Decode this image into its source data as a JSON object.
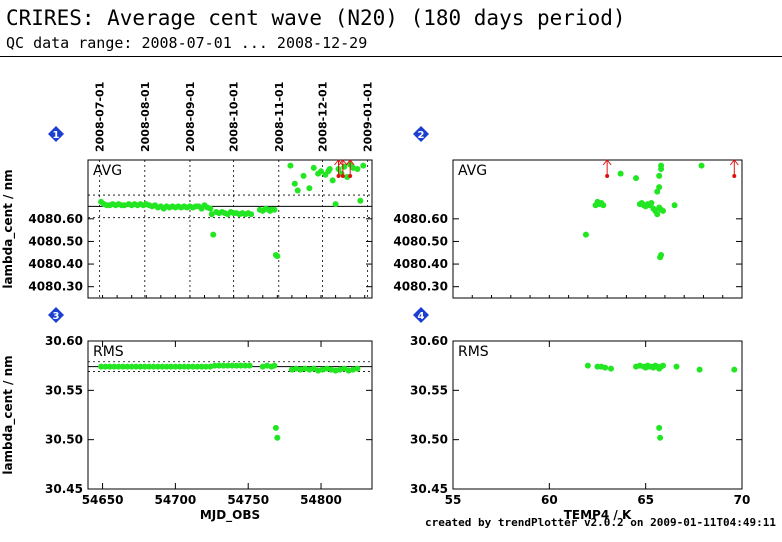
{
  "page": {
    "title": "CRIRES: Average cent wave (N20) (180 days period)",
    "subtitle": "QC data range: 2008-07-01 ... 2008-12-29",
    "footer": "created by trendPlotter v2.0.2 on 2009-01-11T04:49:11"
  },
  "chart_data": [
    {
      "panel_number": "1",
      "type": "scatter",
      "label": "AVG",
      "ylabel": "lambda_cent / nm",
      "xlim": [
        54640,
        54835
      ],
      "ylim": [
        4080.25,
        4080.86
      ],
      "yticks": [
        "4080.30",
        "4080.40",
        "4080.50",
        "4080.60"
      ],
      "ytick_values": [
        4080.3,
        4080.4,
        4080.5,
        4080.6
      ],
      "xticks": [],
      "x_date_labels": [
        "2008-07-01",
        "2008-08-01",
        "2008-09-01",
        "2008-10-01",
        "2008-11-01",
        "2008-12-01",
        "2009-01-01"
      ],
      "x_date_positions": [
        54648,
        54679,
        54710,
        54740,
        54771,
        54801,
        54832
      ],
      "ref_lines": [
        4080.655
      ],
      "limit_lines": [
        4080.605,
        4080.705
      ],
      "points": [
        [
          54649,
          4080.675
        ],
        [
          54651,
          4080.665
        ],
        [
          54653,
          4080.66
        ],
        [
          54655,
          4080.66
        ],
        [
          54657,
          4080.665
        ],
        [
          54659,
          4080.66
        ],
        [
          54661,
          4080.665
        ],
        [
          54663,
          4080.66
        ],
        [
          54665,
          4080.66
        ],
        [
          54668,
          4080.665
        ],
        [
          54670,
          4080.66
        ],
        [
          54672,
          4080.665
        ],
        [
          54674,
          4080.66
        ],
        [
          54676,
          4080.665
        ],
        [
          54678,
          4080.66
        ],
        [
          54680,
          4080.665
        ],
        [
          54682,
          4080.66
        ],
        [
          54684,
          4080.655
        ],
        [
          54686,
          4080.66
        ],
        [
          54688,
          4080.65
        ],
        [
          54690,
          4080.655
        ],
        [
          54692,
          4080.645
        ],
        [
          54694,
          4080.655
        ],
        [
          54696,
          4080.65
        ],
        [
          54698,
          4080.655
        ],
        [
          54700,
          4080.65
        ],
        [
          54702,
          4080.655
        ],
        [
          54704,
          4080.65
        ],
        [
          54706,
          4080.655
        ],
        [
          54708,
          4080.65
        ],
        [
          54710,
          4080.655
        ],
        [
          54712,
          4080.65
        ],
        [
          54714,
          4080.655
        ],
        [
          54716,
          4080.655
        ],
        [
          54718,
          4080.645
        ],
        [
          54720,
          4080.66
        ],
        [
          54722,
          4080.65
        ],
        [
          54724,
          4080.645
        ],
        [
          54725,
          4080.62
        ],
        [
          54726,
          4080.53
        ],
        [
          54728,
          4080.63
        ],
        [
          54730,
          4080.625
        ],
        [
          54732,
          4080.63
        ],
        [
          54734,
          4080.625
        ],
        [
          54736,
          4080.62
        ],
        [
          54738,
          4080.63
        ],
        [
          54740,
          4080.625
        ],
        [
          54742,
          4080.625
        ],
        [
          54744,
          4080.62
        ],
        [
          54746,
          4080.625
        ],
        [
          54748,
          4080.62
        ],
        [
          54750,
          4080.625
        ],
        [
          54752,
          4080.62
        ],
        [
          54758,
          4080.64
        ],
        [
          54760,
          4080.635
        ],
        [
          54762,
          4080.645
        ],
        [
          54764,
          4080.64
        ],
        [
          54765,
          4080.635
        ],
        [
          54766,
          4080.64
        ],
        [
          54768,
          4080.64
        ],
        [
          54769,
          4080.44
        ],
        [
          54770,
          4080.435
        ],
        [
          54779,
          4080.835
        ],
        [
          54782,
          4080.755
        ],
        [
          54784,
          4080.725
        ],
        [
          54788,
          4080.79
        ],
        [
          54792,
          4080.735
        ],
        [
          54795,
          4080.825
        ],
        [
          54798,
          4080.8
        ],
        [
          54800,
          4080.81
        ],
        [
          54803,
          4080.795
        ],
        [
          54805,
          4080.81
        ],
        [
          54806,
          4080.82
        ],
        [
          54808,
          4080.77
        ],
        [
          54810,
          4080.665
        ],
        [
          54812,
          4080.82
        ],
        [
          54814,
          4080.8
        ],
        [
          54816,
          4080.83
        ],
        [
          54818,
          4080.785
        ],
        [
          54820,
          4080.84
        ],
        [
          54822,
          4080.825
        ],
        [
          54825,
          4080.82
        ],
        [
          54827,
          4080.68
        ],
        [
          54829,
          4080.835
        ]
      ],
      "offscale_up": [
        54812,
        54815,
        54820
      ]
    },
    {
      "panel_number": "2",
      "type": "scatter",
      "label": "AVG",
      "ylabel": "",
      "xlim": [
        55,
        70
      ],
      "ylim": [
        4080.25,
        4080.86
      ],
      "yticks": [
        "4080.30",
        "4080.40",
        "4080.50",
        "4080.60"
      ],
      "ytick_values": [
        4080.3,
        4080.4,
        4080.5,
        4080.6
      ],
      "xticks": [],
      "ref_lines": [],
      "limit_lines": [],
      "points": [
        [
          61.9,
          4080.53
        ],
        [
          62.4,
          4080.66
        ],
        [
          62.5,
          4080.675
        ],
        [
          62.6,
          4080.665
        ],
        [
          62.7,
          4080.67
        ],
        [
          62.8,
          4080.66
        ],
        [
          63.7,
          4080.8
        ],
        [
          64.5,
          4080.78
        ],
        [
          64.7,
          4080.665
        ],
        [
          64.8,
          4080.67
        ],
        [
          64.9,
          4080.66
        ],
        [
          65.0,
          4080.655
        ],
        [
          65.1,
          4080.665
        ],
        [
          65.2,
          4080.66
        ],
        [
          65.3,
          4080.67
        ],
        [
          65.4,
          4080.645
        ],
        [
          65.5,
          4080.635
        ],
        [
          65.6,
          4080.62
        ],
        [
          65.7,
          4080.65
        ],
        [
          65.8,
          4080.64
        ],
        [
          65.9,
          4080.635
        ],
        [
          65.6,
          4080.72
        ],
        [
          65.7,
          4080.74
        ],
        [
          65.8,
          4080.82
        ],
        [
          65.8,
          4080.835
        ],
        [
          65.7,
          4080.79
        ],
        [
          65.8,
          4080.44
        ],
        [
          65.75,
          4080.43
        ],
        [
          66.5,
          4080.66
        ],
        [
          67.9,
          4080.835
        ]
      ],
      "offscale_up": [
        63.0,
        69.6
      ]
    },
    {
      "panel_number": "3",
      "type": "scatter",
      "label": "RMS",
      "ylabel": "lambda_cent / nm",
      "xlabel": "MJD_OBS",
      "xlim": [
        54640,
        54835
      ],
      "ylim": [
        30.45,
        30.6
      ],
      "yticks": [
        "30.45",
        "30.50",
        "30.55",
        "30.60"
      ],
      "ytick_values": [
        30.45,
        30.5,
        30.55,
        30.6
      ],
      "xticks": [
        "54650",
        "54700",
        "54750",
        "54800"
      ],
      "xtick_values": [
        54650,
        54700,
        54750,
        54800
      ],
      "ref_lines": [
        30.574
      ],
      "limit_lines": [
        30.569,
        30.579
      ],
      "points": [
        [
          54649,
          30.574
        ],
        [
          54652,
          30.574
        ],
        [
          54655,
          30.574
        ],
        [
          54658,
          30.574
        ],
        [
          54661,
          30.574
        ],
        [
          54664,
          30.574
        ],
        [
          54667,
          30.574
        ],
        [
          54670,
          30.574
        ],
        [
          54673,
          30.574
        ],
        [
          54676,
          30.574
        ],
        [
          54679,
          30.574
        ],
        [
          54682,
          30.574
        ],
        [
          54685,
          30.574
        ],
        [
          54688,
          30.574
        ],
        [
          54691,
          30.574
        ],
        [
          54694,
          30.574
        ],
        [
          54697,
          30.574
        ],
        [
          54700,
          30.574
        ],
        [
          54703,
          30.574
        ],
        [
          54706,
          30.574
        ],
        [
          54709,
          30.574
        ],
        [
          54712,
          30.574
        ],
        [
          54715,
          30.574
        ],
        [
          54718,
          30.574
        ],
        [
          54721,
          30.574
        ],
        [
          54724,
          30.574
        ],
        [
          54727,
          30.575
        ],
        [
          54730,
          30.575
        ],
        [
          54733,
          30.575
        ],
        [
          54736,
          30.575
        ],
        [
          54739,
          30.575
        ],
        [
          54742,
          30.575
        ],
        [
          54745,
          30.575
        ],
        [
          54748,
          30.575
        ],
        [
          54751,
          30.575
        ],
        [
          54760,
          30.574
        ],
        [
          54763,
          30.575
        ],
        [
          54766,
          30.574
        ],
        [
          54768,
          30.575
        ],
        [
          54769,
          30.512
        ],
        [
          54770,
          30.502
        ],
        [
          54780,
          30.571
        ],
        [
          54783,
          30.572
        ],
        [
          54786,
          30.571
        ],
        [
          54789,
          30.572
        ],
        [
          54792,
          30.571
        ],
        [
          54795,
          30.572
        ],
        [
          54798,
          30.57
        ],
        [
          54801,
          30.571
        ],
        [
          54804,
          30.572
        ],
        [
          54807,
          30.571
        ],
        [
          54810,
          30.57
        ],
        [
          54813,
          30.571
        ],
        [
          54816,
          30.572
        ],
        [
          54819,
          30.57
        ],
        [
          54822,
          30.571
        ],
        [
          54825,
          30.572
        ]
      ],
      "offscale_up": []
    },
    {
      "panel_number": "4",
      "type": "scatter",
      "label": "RMS",
      "ylabel": "",
      "xlabel": "TEMP4 / K",
      "xlim": [
        55,
        70
      ],
      "ylim": [
        30.45,
        30.6
      ],
      "yticks": [
        "30.45",
        "30.50",
        "30.55",
        "30.60"
      ],
      "ytick_values": [
        30.45,
        30.5,
        30.55,
        30.6
      ],
      "xticks": [
        "55",
        "60",
        "65",
        "70"
      ],
      "xtick_values": [
        55,
        60,
        65,
        70
      ],
      "ref_lines": [],
      "limit_lines": [],
      "points": [
        [
          62.0,
          30.575
        ],
        [
          62.5,
          30.574
        ],
        [
          62.7,
          30.574
        ],
        [
          62.9,
          30.573
        ],
        [
          63.2,
          30.572
        ],
        [
          64.5,
          30.574
        ],
        [
          64.7,
          30.575
        ],
        [
          64.9,
          30.574
        ],
        [
          65.0,
          30.573
        ],
        [
          65.1,
          30.575
        ],
        [
          65.2,
          30.574
        ],
        [
          65.3,
          30.574
        ],
        [
          65.4,
          30.573
        ],
        [
          65.5,
          30.575
        ],
        [
          65.6,
          30.574
        ],
        [
          65.7,
          30.572
        ],
        [
          65.8,
          30.574
        ],
        [
          65.9,
          30.575
        ],
        [
          65.7,
          30.512
        ],
        [
          65.75,
          30.502
        ],
        [
          66.6,
          30.574
        ],
        [
          67.8,
          30.571
        ],
        [
          69.6,
          30.571
        ]
      ],
      "offscale_up": []
    }
  ]
}
